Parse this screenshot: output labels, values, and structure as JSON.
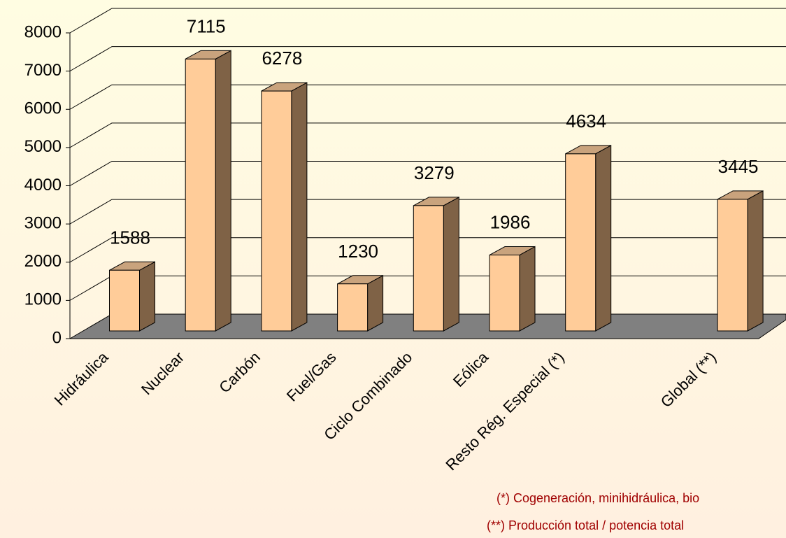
{
  "chart_data": {
    "type": "bar3d",
    "categories": [
      "Hidráulica",
      "Nuclear",
      "Carbón",
      "Fuel/Gas",
      "Ciclo Combinado",
      "Eólica",
      "Resto Rég. Especial (*)",
      null,
      "Global (**)"
    ],
    "values": [
      1588,
      7115,
      6278,
      1230,
      3279,
      1986,
      4634,
      null,
      3445
    ],
    "ylim": [
      0,
      8000
    ],
    "yticks": [
      0,
      1000,
      2000,
      3000,
      4000,
      5000,
      6000,
      7000,
      8000
    ],
    "grid": true,
    "colors": {
      "front": "#ffcc99",
      "top": "#c9a37d",
      "side": "#7f6246",
      "floor": "#808080"
    },
    "notes": [
      "(*) Cogeneración, minihidráulica, bio",
      "(**) Producción total / potencia total"
    ]
  }
}
